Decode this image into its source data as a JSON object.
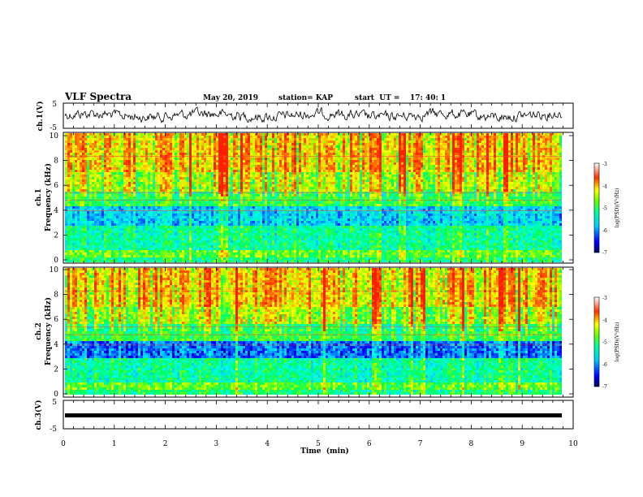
{
  "header": {
    "title": "VLF Spectra",
    "date": "May 20, 2019",
    "station": "station= KAP",
    "start": "start  UT =    17: 40: 1"
  },
  "colors": {
    "colormap": [
      "#000080",
      "#0000ff",
      "#00aaff",
      "#00ffff",
      "#00ff66",
      "#7cff00",
      "#ffff00",
      "#ffaa00",
      "#ff3300",
      "#ffffff"
    ],
    "trace": "#000000"
  },
  "chart_data": [
    {
      "type": "line",
      "ylabel": "ch.1(V)",
      "ylim": [
        -5,
        5
      ],
      "yticks": [
        "5",
        "-5"
      ],
      "xlim": [
        0,
        10
      ],
      "series": [
        {
          "name": "",
          "values_range": [
            -1.5,
            1.5
          ]
        }
      ]
    },
    {
      "type": "heatmap",
      "ylabel": "ch.1 Frequency (kHz)",
      "ylim": [
        0,
        10
      ],
      "yticks": [
        "0",
        "2",
        "4",
        "6",
        "8",
        "10"
      ],
      "xlim": [
        0,
        10
      ],
      "colorbar": {
        "label": "log(PSD)(V²/Hz)",
        "range": [
          -7,
          -3
        ],
        "ticks": [
          "-3",
          "-4",
          "-5",
          "-6",
          "-7"
        ]
      }
    },
    {
      "type": "heatmap",
      "ylabel": "ch.2 Frequency (kHz)",
      "ylim": [
        0,
        10
      ],
      "yticks": [
        "0",
        "2",
        "4",
        "6",
        "8",
        "10"
      ],
      "xlim": [
        0,
        10
      ],
      "colorbar": {
        "label": "log(PSD)(V²/Hz)",
        "range": [
          -7,
          -3
        ],
        "ticks": [
          "-3",
          "-4",
          "-5",
          "-6",
          "-7"
        ]
      }
    },
    {
      "type": "line",
      "ylabel": "ch.3(V)",
      "ylim": [
        -5,
        5
      ],
      "yticks": [
        "5",
        "-5"
      ],
      "xlim": [
        0,
        10
      ],
      "series": [
        {
          "name": "",
          "values": [
            -1.2
          ]
        }
      ],
      "xlabel": "Time  (min)",
      "xticks": [
        "0",
        "1",
        "2",
        "3",
        "4",
        "5",
        "6",
        "7",
        "8",
        "9",
        "10"
      ]
    }
  ]
}
